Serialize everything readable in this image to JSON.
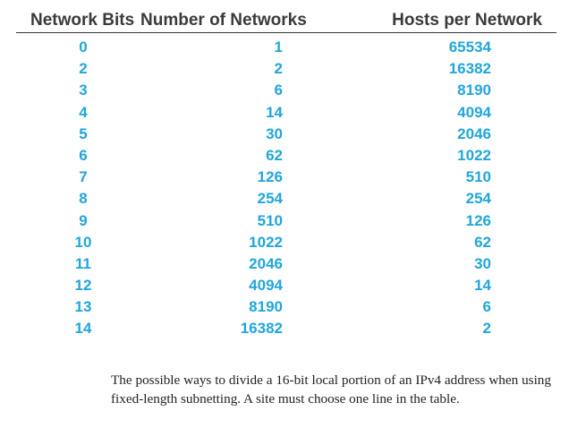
{
  "table": {
    "headers": [
      "Network Bits",
      "Number of Networks",
      "Hosts per Network"
    ],
    "rows": [
      [
        "0",
        "1",
        "65534"
      ],
      [
        "2",
        "2",
        "16382"
      ],
      [
        "3",
        "6",
        "8190"
      ],
      [
        "4",
        "14",
        "4094"
      ],
      [
        "5",
        "30",
        "2046"
      ],
      [
        "6",
        "62",
        "1022"
      ],
      [
        "7",
        "126",
        "510"
      ],
      [
        "8",
        "254",
        "254"
      ],
      [
        "9",
        "510",
        "126"
      ],
      [
        "10",
        "1022",
        "62"
      ],
      [
        "11",
        "2046",
        "30"
      ],
      [
        "12",
        "4094",
        "14"
      ],
      [
        "13",
        "8190",
        "6"
      ],
      [
        "14",
        "16382",
        "2"
      ]
    ]
  },
  "caption": {
    "text": "The possible ways to divide a 16-bit local portion of an IPv4 address when using fixed-length subnetting. A site must choose one line in the table."
  },
  "colors": {
    "header_text": "#3a3a3a",
    "cell_text": "#1fa6dc",
    "rule": "#333333"
  }
}
